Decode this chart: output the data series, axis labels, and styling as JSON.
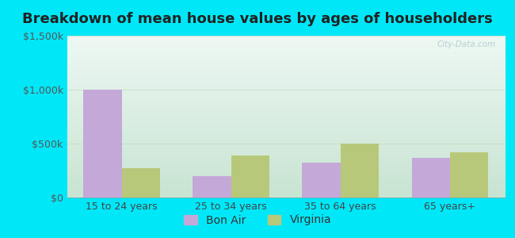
{
  "title": "Breakdown of mean house values by ages of householders",
  "categories": [
    "15 to 24 years",
    "25 to 34 years",
    "35 to 64 years",
    "65 years+"
  ],
  "bon_air_values": [
    1000000,
    200000,
    325000,
    370000
  ],
  "virginia_values": [
    275000,
    390000,
    500000,
    420000
  ],
  "bar_color_bon_air": "#c4a8d8",
  "bar_color_virginia": "#b8c87a",
  "ylim": [
    0,
    1500000
  ],
  "yticks": [
    0,
    500000,
    1000000,
    1500000
  ],
  "ytick_labels": [
    "$0",
    "$500k",
    "$1,000k",
    "$1,500k"
  ],
  "background_outer": "#00e8f8",
  "bg_color_topleft": "#d8eedd",
  "bg_color_topright": "#eef8f4",
  "bg_color_bottomleft": "#d0e8d8",
  "bg_color_bottomright": "#eaf5ef",
  "grid_color": "#c8dfc8",
  "watermark": "City-Data.com",
  "legend_labels": [
    "Bon Air",
    "Virginia"
  ],
  "bar_width": 0.35,
  "title_fontsize": 13,
  "axis_fontsize": 9,
  "legend_fontsize": 10
}
